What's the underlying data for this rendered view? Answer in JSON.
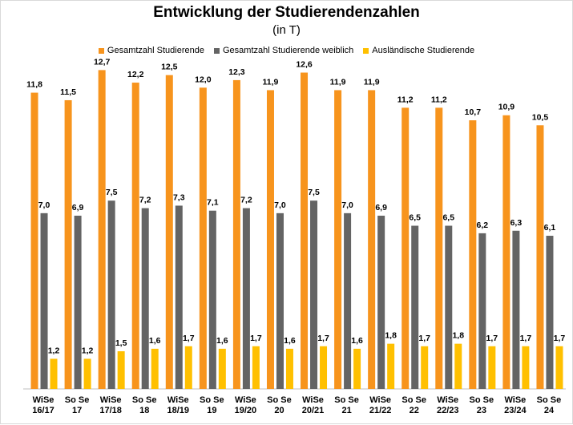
{
  "chart_data": {
    "type": "bar",
    "title": "Entwicklung der Studierendenzahlen",
    "subtitle": "(in T)",
    "categories": [
      "WiSe\n16/17",
      "So Se\n17",
      "WiSe\n17/18",
      "So Se\n18",
      "WiSe\n18/19",
      "So Se\n19",
      "WiSe\n19/20",
      "So Se\n20",
      "WiSe\n20/21",
      "So Se\n21",
      "WiSe\n21/22",
      "So Se\n22",
      "WiSe\n22/23",
      "So Se\n23",
      "WiSe\n23/24",
      "So Se\n24"
    ],
    "series": [
      {
        "name": "Gesamtzahl Studierende",
        "color": "#f7941d",
        "values": [
          11.8,
          11.5,
          12.7,
          12.2,
          12.5,
          12.0,
          12.3,
          11.9,
          12.6,
          11.9,
          11.9,
          11.2,
          11.2,
          10.7,
          10.9,
          10.5
        ],
        "labels": [
          "11,8",
          "11,5",
          "12,7",
          "12,2",
          "12,5",
          "12,0",
          "12,3",
          "11,9",
          "12,6",
          "11,9",
          "11,9",
          "11,2",
          "11,2",
          "10,7",
          "10,9",
          "10,5"
        ]
      },
      {
        "name": "Gesamtzahl Studierende weiblich",
        "color": "#646464",
        "values": [
          7.0,
          6.9,
          7.5,
          7.2,
          7.3,
          7.1,
          7.2,
          7.0,
          7.5,
          7.0,
          6.9,
          6.5,
          6.5,
          6.2,
          6.3,
          6.1
        ],
        "labels": [
          "7,0",
          "6,9",
          "7,5",
          "7,2",
          "7,3",
          "7,1",
          "7,2",
          "7,0",
          "7,5",
          "7,0",
          "6,9",
          "6,5",
          "6,5",
          "6,2",
          "6,3",
          "6,1"
        ]
      },
      {
        "name": "Ausländische Studierende",
        "color": "#ffc000",
        "values": [
          1.2,
          1.2,
          1.5,
          1.6,
          1.7,
          1.6,
          1.7,
          1.6,
          1.7,
          1.6,
          1.8,
          1.7,
          1.8,
          1.7,
          1.7,
          1.7
        ],
        "labels": [
          "1,2",
          "1,2",
          "1,5",
          "1,6",
          "1,7",
          "1,6",
          "1,7",
          "1,6",
          "1,7",
          "1,6",
          "1,8",
          "1,7",
          "1,8",
          "1,7",
          "1,7",
          "1,7"
        ]
      }
    ],
    "ylim": [
      0,
      13
    ],
    "grid": false,
    "legend_position": "top"
  }
}
